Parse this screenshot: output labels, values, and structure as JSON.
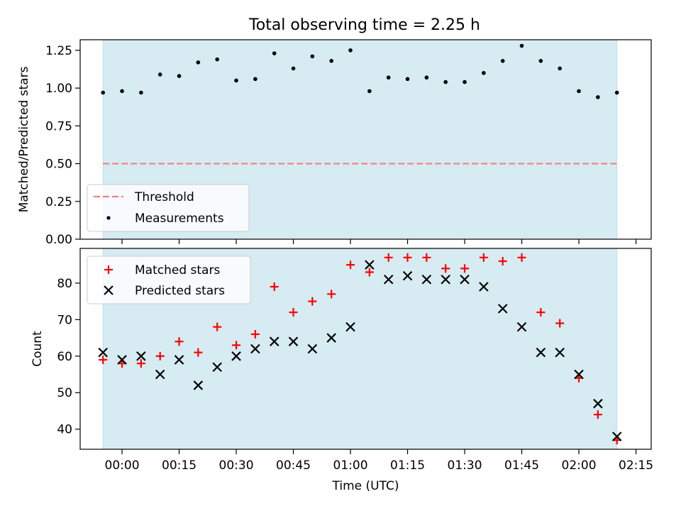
{
  "figure": {
    "title": "Total observing time = 2.25 h"
  },
  "colors": {
    "observing_span": "#add8e6",
    "threshold": "#f08080",
    "measurements": "#000000",
    "matched": "#ff0000",
    "predicted": "#000000"
  },
  "chart_data": [
    {
      "type": "scatter",
      "panel": "top",
      "title": "Total observing time = 2.25 h",
      "xlabel": "",
      "ylabel": "Matched/Predicted stars",
      "x_unit": "time (UTC)",
      "ylim": [
        0.0,
        1.32
      ],
      "yticks": [
        0.0,
        0.25,
        0.5,
        0.75,
        1.0,
        1.25
      ],
      "ytick_labels": [
        "0.00",
        "0.25",
        "0.50",
        "0.75",
        "1.00",
        "1.25"
      ],
      "observing_span": [
        "23:55",
        "02:10"
      ],
      "legend_position": "lower-left",
      "threshold": {
        "name": "Threshold",
        "value": 0.5,
        "style": "dashed"
      },
      "series": [
        {
          "name": "Measurements",
          "marker": "dot",
          "x": [
            "23:55",
            "00:00",
            "00:05",
            "00:10",
            "00:15",
            "00:20",
            "00:25",
            "00:30",
            "00:35",
            "00:40",
            "00:45",
            "00:50",
            "00:55",
            "01:00",
            "01:05",
            "01:10",
            "01:15",
            "01:20",
            "01:25",
            "01:30",
            "01:35",
            "01:40",
            "01:45",
            "01:50",
            "01:55",
            "02:00",
            "02:05",
            "02:10"
          ],
          "y": [
            0.97,
            0.98,
            0.97,
            1.09,
            1.08,
            1.17,
            1.19,
            1.05,
            1.06,
            1.23,
            1.13,
            1.21,
            1.18,
            1.25,
            0.98,
            1.07,
            1.06,
            1.07,
            1.04,
            1.04,
            1.1,
            1.18,
            1.28,
            1.18,
            1.13,
            0.98,
            0.94,
            0.97
          ]
        }
      ]
    },
    {
      "type": "scatter",
      "panel": "bottom",
      "title": "",
      "xlabel": "Time (UTC)",
      "ylabel": "Count",
      "ylim": [
        34.5,
        89.5
      ],
      "yticks": [
        40,
        50,
        60,
        70,
        80
      ],
      "ytick_labels": [
        "40",
        "50",
        "60",
        "70",
        "80"
      ],
      "xticks": [
        "00:00",
        "00:15",
        "00:30",
        "00:45",
        "01:00",
        "01:15",
        "01:30",
        "01:45",
        "02:00",
        "02:15"
      ],
      "xtick_labels": [
        "00:00",
        "00:15",
        "00:30",
        "00:45",
        "01:00",
        "01:15",
        "01:30",
        "01:45",
        "02:00",
        "02:15"
      ],
      "observing_span": [
        "23:55",
        "02:10"
      ],
      "legend_position": "top-left",
      "series": [
        {
          "name": "Matched stars",
          "marker": "plus",
          "x": [
            "23:55",
            "00:00",
            "00:05",
            "00:10",
            "00:15",
            "00:20",
            "00:25",
            "00:30",
            "00:35",
            "00:40",
            "00:45",
            "00:50",
            "00:55",
            "01:00",
            "01:05",
            "01:10",
            "01:15",
            "01:20",
            "01:25",
            "01:30",
            "01:35",
            "01:40",
            "01:45",
            "01:50",
            "01:55",
            "02:00",
            "02:05",
            "02:10"
          ],
          "y": [
            59,
            58,
            58,
            60,
            64,
            61,
            68,
            63,
            66,
            79,
            72,
            75,
            77,
            85,
            83,
            87,
            87,
            87,
            84,
            84,
            87,
            86,
            87,
            72,
            69,
            54,
            44,
            37
          ]
        },
        {
          "name": "Predicted stars",
          "marker": "x",
          "x": [
            "23:55",
            "00:00",
            "00:05",
            "00:10",
            "00:15",
            "00:20",
            "00:25",
            "00:30",
            "00:35",
            "00:40",
            "00:45",
            "00:50",
            "00:55",
            "01:00",
            "01:05",
            "01:10",
            "01:15",
            "01:20",
            "01:25",
            "01:30",
            "01:35",
            "01:40",
            "01:45",
            "01:50",
            "01:55",
            "02:00",
            "02:05",
            "02:10"
          ],
          "y": [
            61,
            59,
            60,
            55,
            59,
            52,
            57,
            60,
            62,
            64,
            64,
            62,
            65,
            68,
            85,
            81,
            82,
            81,
            81,
            81,
            79,
            73,
            68,
            61,
            61,
            55,
            47,
            38
          ]
        }
      ]
    }
  ]
}
